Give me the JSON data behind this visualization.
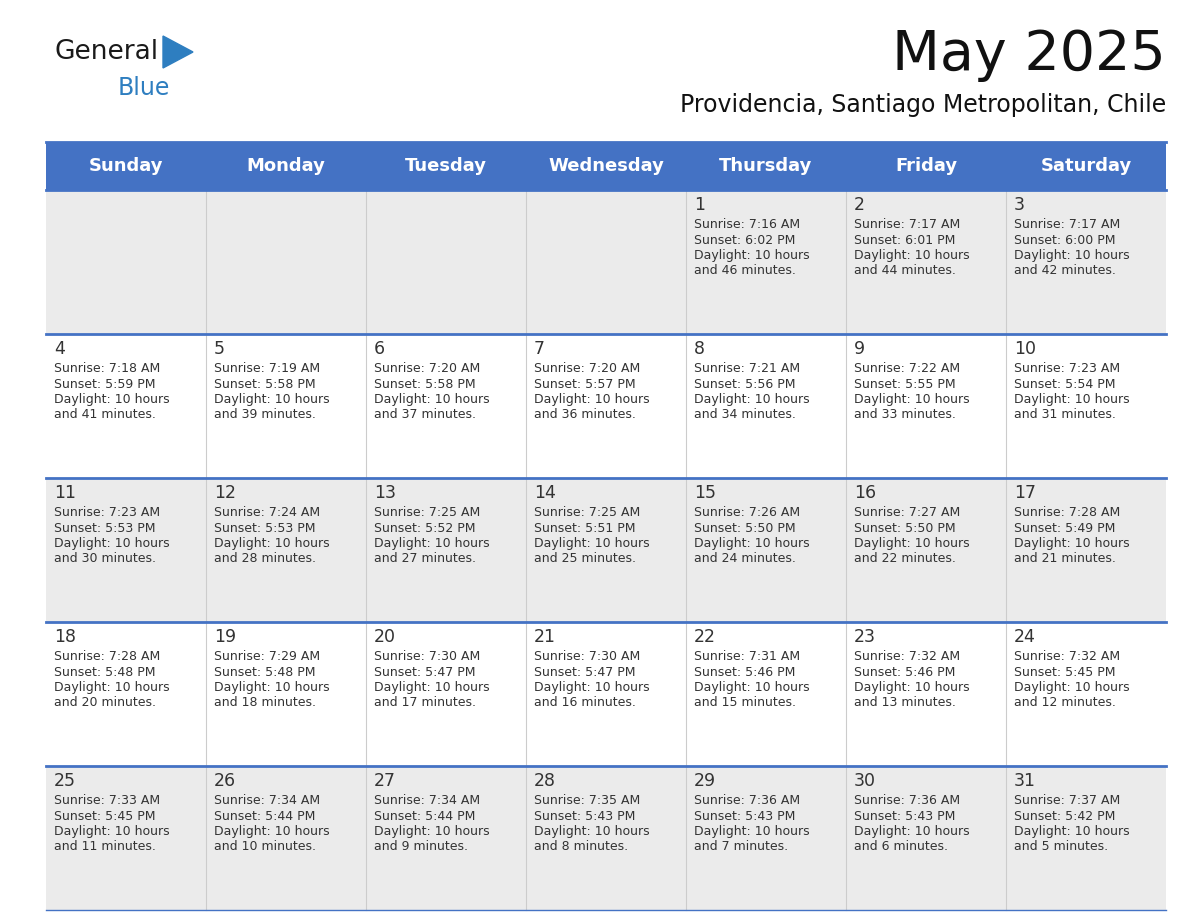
{
  "title": "May 2025",
  "subtitle": "Providencia, Santiago Metropolitan, Chile",
  "days_of_week": [
    "Sunday",
    "Monday",
    "Tuesday",
    "Wednesday",
    "Thursday",
    "Friday",
    "Saturday"
  ],
  "header_bg": "#4472C4",
  "header_text": "#FFFFFF",
  "row_bg_odd": "#EBEBEB",
  "row_bg_even": "#FFFFFF",
  "cell_border_color": "#4472C4",
  "cell_sep_color": "#CCCCCC",
  "day_num_color": "#333333",
  "text_color": "#333333",
  "logo_general_color": "#1a1a1a",
  "logo_blue_color": "#2E7EC0",
  "calendar_data": [
    {
      "day": 1,
      "col": 4,
      "row": 0,
      "sunrise": "7:16 AM",
      "sunset": "6:02 PM",
      "daylight_h": "10 hours",
      "daylight_m": "and 46 minutes."
    },
    {
      "day": 2,
      "col": 5,
      "row": 0,
      "sunrise": "7:17 AM",
      "sunset": "6:01 PM",
      "daylight_h": "10 hours",
      "daylight_m": "and 44 minutes."
    },
    {
      "day": 3,
      "col": 6,
      "row": 0,
      "sunrise": "7:17 AM",
      "sunset": "6:00 PM",
      "daylight_h": "10 hours",
      "daylight_m": "and 42 minutes."
    },
    {
      "day": 4,
      "col": 0,
      "row": 1,
      "sunrise": "7:18 AM",
      "sunset": "5:59 PM",
      "daylight_h": "10 hours",
      "daylight_m": "and 41 minutes."
    },
    {
      "day": 5,
      "col": 1,
      "row": 1,
      "sunrise": "7:19 AM",
      "sunset": "5:58 PM",
      "daylight_h": "10 hours",
      "daylight_m": "and 39 minutes."
    },
    {
      "day": 6,
      "col": 2,
      "row": 1,
      "sunrise": "7:20 AM",
      "sunset": "5:58 PM",
      "daylight_h": "10 hours",
      "daylight_m": "and 37 minutes."
    },
    {
      "day": 7,
      "col": 3,
      "row": 1,
      "sunrise": "7:20 AM",
      "sunset": "5:57 PM",
      "daylight_h": "10 hours",
      "daylight_m": "and 36 minutes."
    },
    {
      "day": 8,
      "col": 4,
      "row": 1,
      "sunrise": "7:21 AM",
      "sunset": "5:56 PM",
      "daylight_h": "10 hours",
      "daylight_m": "and 34 minutes."
    },
    {
      "day": 9,
      "col": 5,
      "row": 1,
      "sunrise": "7:22 AM",
      "sunset": "5:55 PM",
      "daylight_h": "10 hours",
      "daylight_m": "and 33 minutes."
    },
    {
      "day": 10,
      "col": 6,
      "row": 1,
      "sunrise": "7:23 AM",
      "sunset": "5:54 PM",
      "daylight_h": "10 hours",
      "daylight_m": "and 31 minutes."
    },
    {
      "day": 11,
      "col": 0,
      "row": 2,
      "sunrise": "7:23 AM",
      "sunset": "5:53 PM",
      "daylight_h": "10 hours",
      "daylight_m": "and 30 minutes."
    },
    {
      "day": 12,
      "col": 1,
      "row": 2,
      "sunrise": "7:24 AM",
      "sunset": "5:53 PM",
      "daylight_h": "10 hours",
      "daylight_m": "and 28 minutes."
    },
    {
      "day": 13,
      "col": 2,
      "row": 2,
      "sunrise": "7:25 AM",
      "sunset": "5:52 PM",
      "daylight_h": "10 hours",
      "daylight_m": "and 27 minutes."
    },
    {
      "day": 14,
      "col": 3,
      "row": 2,
      "sunrise": "7:25 AM",
      "sunset": "5:51 PM",
      "daylight_h": "10 hours",
      "daylight_m": "and 25 minutes."
    },
    {
      "day": 15,
      "col": 4,
      "row": 2,
      "sunrise": "7:26 AM",
      "sunset": "5:50 PM",
      "daylight_h": "10 hours",
      "daylight_m": "and 24 minutes."
    },
    {
      "day": 16,
      "col": 5,
      "row": 2,
      "sunrise": "7:27 AM",
      "sunset": "5:50 PM",
      "daylight_h": "10 hours",
      "daylight_m": "and 22 minutes."
    },
    {
      "day": 17,
      "col": 6,
      "row": 2,
      "sunrise": "7:28 AM",
      "sunset": "5:49 PM",
      "daylight_h": "10 hours",
      "daylight_m": "and 21 minutes."
    },
    {
      "day": 18,
      "col": 0,
      "row": 3,
      "sunrise": "7:28 AM",
      "sunset": "5:48 PM",
      "daylight_h": "10 hours",
      "daylight_m": "and 20 minutes."
    },
    {
      "day": 19,
      "col": 1,
      "row": 3,
      "sunrise": "7:29 AM",
      "sunset": "5:48 PM",
      "daylight_h": "10 hours",
      "daylight_m": "and 18 minutes."
    },
    {
      "day": 20,
      "col": 2,
      "row": 3,
      "sunrise": "7:30 AM",
      "sunset": "5:47 PM",
      "daylight_h": "10 hours",
      "daylight_m": "and 17 minutes."
    },
    {
      "day": 21,
      "col": 3,
      "row": 3,
      "sunrise": "7:30 AM",
      "sunset": "5:47 PM",
      "daylight_h": "10 hours",
      "daylight_m": "and 16 minutes."
    },
    {
      "day": 22,
      "col": 4,
      "row": 3,
      "sunrise": "7:31 AM",
      "sunset": "5:46 PM",
      "daylight_h": "10 hours",
      "daylight_m": "and 15 minutes."
    },
    {
      "day": 23,
      "col": 5,
      "row": 3,
      "sunrise": "7:32 AM",
      "sunset": "5:46 PM",
      "daylight_h": "10 hours",
      "daylight_m": "and 13 minutes."
    },
    {
      "day": 24,
      "col": 6,
      "row": 3,
      "sunrise": "7:32 AM",
      "sunset": "5:45 PM",
      "daylight_h": "10 hours",
      "daylight_m": "and 12 minutes."
    },
    {
      "day": 25,
      "col": 0,
      "row": 4,
      "sunrise": "7:33 AM",
      "sunset": "5:45 PM",
      "daylight_h": "10 hours",
      "daylight_m": "and 11 minutes."
    },
    {
      "day": 26,
      "col": 1,
      "row": 4,
      "sunrise": "7:34 AM",
      "sunset": "5:44 PM",
      "daylight_h": "10 hours",
      "daylight_m": "and 10 minutes."
    },
    {
      "day": 27,
      "col": 2,
      "row": 4,
      "sunrise": "7:34 AM",
      "sunset": "5:44 PM",
      "daylight_h": "10 hours",
      "daylight_m": "and 9 minutes."
    },
    {
      "day": 28,
      "col": 3,
      "row": 4,
      "sunrise": "7:35 AM",
      "sunset": "5:43 PM",
      "daylight_h": "10 hours",
      "daylight_m": "and 8 minutes."
    },
    {
      "day": 29,
      "col": 4,
      "row": 4,
      "sunrise": "7:36 AM",
      "sunset": "5:43 PM",
      "daylight_h": "10 hours",
      "daylight_m": "and 7 minutes."
    },
    {
      "day": 30,
      "col": 5,
      "row": 4,
      "sunrise": "7:36 AM",
      "sunset": "5:43 PM",
      "daylight_h": "10 hours",
      "daylight_m": "and 6 minutes."
    },
    {
      "day": 31,
      "col": 6,
      "row": 4,
      "sunrise": "7:37 AM",
      "sunset": "5:42 PM",
      "daylight_h": "10 hours",
      "daylight_m": "and 5 minutes."
    }
  ]
}
